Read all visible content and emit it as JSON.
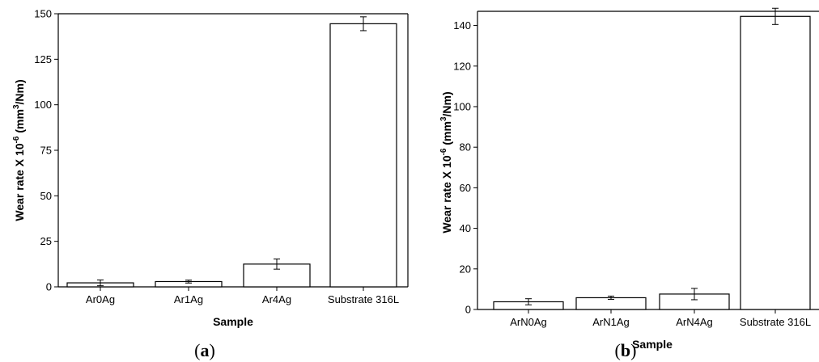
{
  "chart_data": [
    {
      "type": "bar",
      "panel_label_open": "(",
      "panel_label_letter": "a",
      "panel_label_close": ")",
      "xlabel": "Sample",
      "ylabel_prefix": "Wear rate X 10",
      "ylabel_exp": "-6",
      "ylabel_unit_open": " (mm",
      "ylabel_unit_exp": "3",
      "ylabel_unit_close": "/Nm)",
      "categories": [
        "Ar0Ag",
        "Ar1Ag",
        "Ar4Ag",
        "Substrate 316L"
      ],
      "values": [
        2.2,
        2.9,
        12.5,
        144.5
      ],
      "errors": [
        1.6,
        0.8,
        2.8,
        3.8
      ],
      "ylim": [
        0,
        150
      ],
      "yticks": [
        0,
        25,
        50,
        75,
        100,
        125,
        150
      ],
      "ytick_labels": [
        "0",
        "25",
        "50",
        "75",
        "100",
        "125",
        "150"
      ],
      "grid": false,
      "bar_color": "#ffffff",
      "edge_color": "#000000"
    },
    {
      "type": "bar",
      "panel_label_open": "(",
      "panel_label_letter": "b",
      "panel_label_close": ")",
      "xlabel": "Sample",
      "ylabel_prefix": "Wear rate X 10",
      "ylabel_exp": "-6",
      "ylabel_unit_open": " (mm",
      "ylabel_unit_exp": "3",
      "ylabel_unit_close": "/Nm)",
      "categories": [
        "ArN0Ag",
        "ArN1Ag",
        "ArN4Ag",
        "Substrate 316L"
      ],
      "values": [
        3.8,
        5.8,
        7.6,
        144.5
      ],
      "errors": [
        1.5,
        0.8,
        2.8,
        4.0
      ],
      "ylim": [
        0,
        147
      ],
      "yticks": [
        0,
        20,
        40,
        60,
        80,
        100,
        120,
        140
      ],
      "ytick_labels": [
        "0",
        "20",
        "40",
        "60",
        "80",
        "100",
        "120",
        "140"
      ],
      "grid": false,
      "bar_color": "#ffffff",
      "edge_color": "#000000"
    }
  ]
}
